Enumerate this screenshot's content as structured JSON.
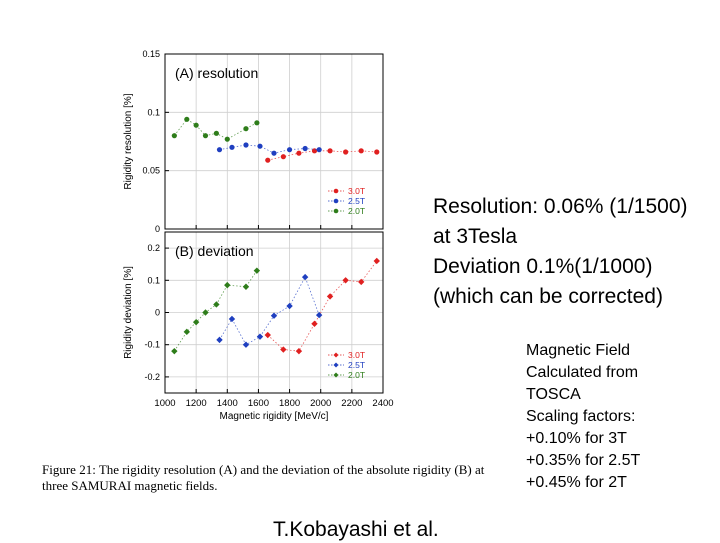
{
  "chart_data": [
    {
      "type": "scatter",
      "title": "(A) resolution",
      "xlabel": "",
      "ylabel": "Rigidity resolution [%]",
      "xlim": [
        1000,
        2400
      ],
      "ylim": [
        0,
        0.15
      ],
      "y_ticks": [
        "0",
        "0.05",
        "0.1",
        "0.15"
      ],
      "legend_position": "bottom-right",
      "series": [
        {
          "name": "3.0T",
          "color": "#e02020",
          "marker": "circle",
          "x": [
            1660,
            1760,
            1860,
            1960,
            2060,
            2160,
            2260,
            2360
          ],
          "y": [
            0.059,
            0.062,
            0.065,
            0.067,
            0.067,
            0.066,
            0.067,
            0.066
          ]
        },
        {
          "name": "2.5T",
          "color": "#1f3fc0",
          "marker": "circle",
          "x": [
            1350,
            1430,
            1520,
            1610,
            1700,
            1800,
            1900,
            1990
          ],
          "y": [
            0.068,
            0.07,
            0.072,
            0.071,
            0.065,
            0.068,
            0.069,
            0.068
          ]
        },
        {
          "name": "2.0T",
          "color": "#2e7d1a",
          "marker": "circle",
          "x": [
            1060,
            1140,
            1200,
            1260,
            1330,
            1400,
            1520,
            1590
          ],
          "y": [
            0.08,
            0.094,
            0.089,
            0.08,
            0.082,
            0.077,
            0.086,
            0.091
          ]
        }
      ]
    },
    {
      "type": "scatter",
      "title": "(B) deviation",
      "xlabel": "Magnetic rigidity [MeV/c]",
      "ylabel": "Rigidity deviation [%]",
      "xlim": [
        1000,
        2400
      ],
      "ylim": [
        -0.25,
        0.25
      ],
      "x_ticks": [
        "1000",
        "1200",
        "1400",
        "1600",
        "1800",
        "2000",
        "2200",
        "2400"
      ],
      "y_ticks": [
        "-0.2",
        "-0.1",
        "0",
        "0.1",
        "0.2"
      ],
      "legend_position": "bottom-right",
      "series": [
        {
          "name": "3.0T",
          "color": "#e02020",
          "marker": "diamond",
          "x": [
            1660,
            1760,
            1860,
            1960,
            2060,
            2160,
            2260,
            2360
          ],
          "y": [
            -0.07,
            -0.115,
            -0.12,
            -0.035,
            0.05,
            0.1,
            0.095,
            0.16
          ]
        },
        {
          "name": "2.5T",
          "color": "#1f3fc0",
          "marker": "diamond",
          "x": [
            1350,
            1430,
            1520,
            1610,
            1700,
            1800,
            1900,
            1990
          ],
          "y": [
            -0.085,
            -0.02,
            -0.1,
            -0.075,
            -0.01,
            0.02,
            0.11,
            -0.008
          ]
        },
        {
          "name": "2.0T",
          "color": "#2e7d1a",
          "marker": "diamond",
          "x": [
            1060,
            1140,
            1200,
            1260,
            1330,
            1400,
            1520,
            1590
          ],
          "y": [
            -0.12,
            -0.06,
            -0.03,
            0.0,
            0.025,
            0.085,
            0.08,
            0.13
          ]
        }
      ]
    }
  ],
  "figure_caption": "Figure 21: The rigidity resolution (A) and the deviation of the absolute rigidity (B) at three SAMURAI magnetic fields.",
  "side_text": {
    "line1": "Resolution: 0.06% (1/1500)",
    "line2": "at 3Tesla",
    "line3": "Deviation 0.1%(1/1000)",
    "line4": "(which can be corrected)"
  },
  "magnet_text": {
    "line1": "Magnetic Field",
    "line2": "Calculated from",
    "line3": "TOSCA",
    "line4": "Scaling factors:",
    "line5": "+0.10% for 3T",
    "line6": "+0.35% for 2.5T",
    "line7": "+0.45% for 2T"
  },
  "author": "T.Kobayashi et al."
}
